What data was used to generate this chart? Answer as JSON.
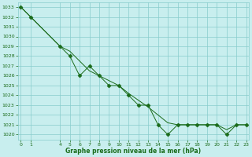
{
  "series1_x": [
    0,
    1,
    4,
    5,
    6,
    7,
    8,
    9,
    10,
    11,
    12,
    13,
    14,
    15,
    16,
    17,
    18,
    19,
    20,
    21,
    22,
    23
  ],
  "series1_y": [
    1033,
    1032,
    1029,
    1028,
    1026,
    1027,
    1026,
    1025,
    1025,
    1024,
    1023,
    1023,
    1021,
    1020,
    1021,
    1021,
    1021,
    1021,
    1021,
    1020,
    1021,
    1021
  ],
  "series2_x": [
    0,
    1,
    4,
    5,
    6,
    7,
    8,
    9,
    10,
    11,
    12,
    13,
    14,
    15,
    16,
    17,
    18,
    19,
    20,
    21,
    22,
    23
  ],
  "series2_y": [
    1033,
    1032,
    1029,
    1028.5,
    1027.5,
    1026.5,
    1026,
    1025.5,
    1025,
    1024.2,
    1023.5,
    1022.8,
    1022,
    1021.2,
    1021,
    1021,
    1021,
    1021,
    1021,
    1020.5,
    1021,
    1021
  ],
  "line_color": "#1a6b1a",
  "marker": "D",
  "marker_size": 2.5,
  "bg_color": "#c8eeee",
  "grid_color": "#88cccc",
  "xlabel": "Graphe pression niveau de la mer (hPa)",
  "ylim": [
    1019.5,
    1033.5
  ],
  "xlim": [
    -0.3,
    23.3
  ],
  "xticks": [
    0,
    1,
    4,
    5,
    6,
    7,
    8,
    9,
    10,
    11,
    12,
    13,
    14,
    15,
    16,
    17,
    18,
    19,
    20,
    21,
    22,
    23
  ],
  "yticks": [
    1020,
    1021,
    1022,
    1023,
    1024,
    1025,
    1026,
    1027,
    1028,
    1029,
    1030,
    1031,
    1032,
    1033
  ],
  "tick_fontsize": 4.5,
  "xlabel_fontsize": 5.5
}
